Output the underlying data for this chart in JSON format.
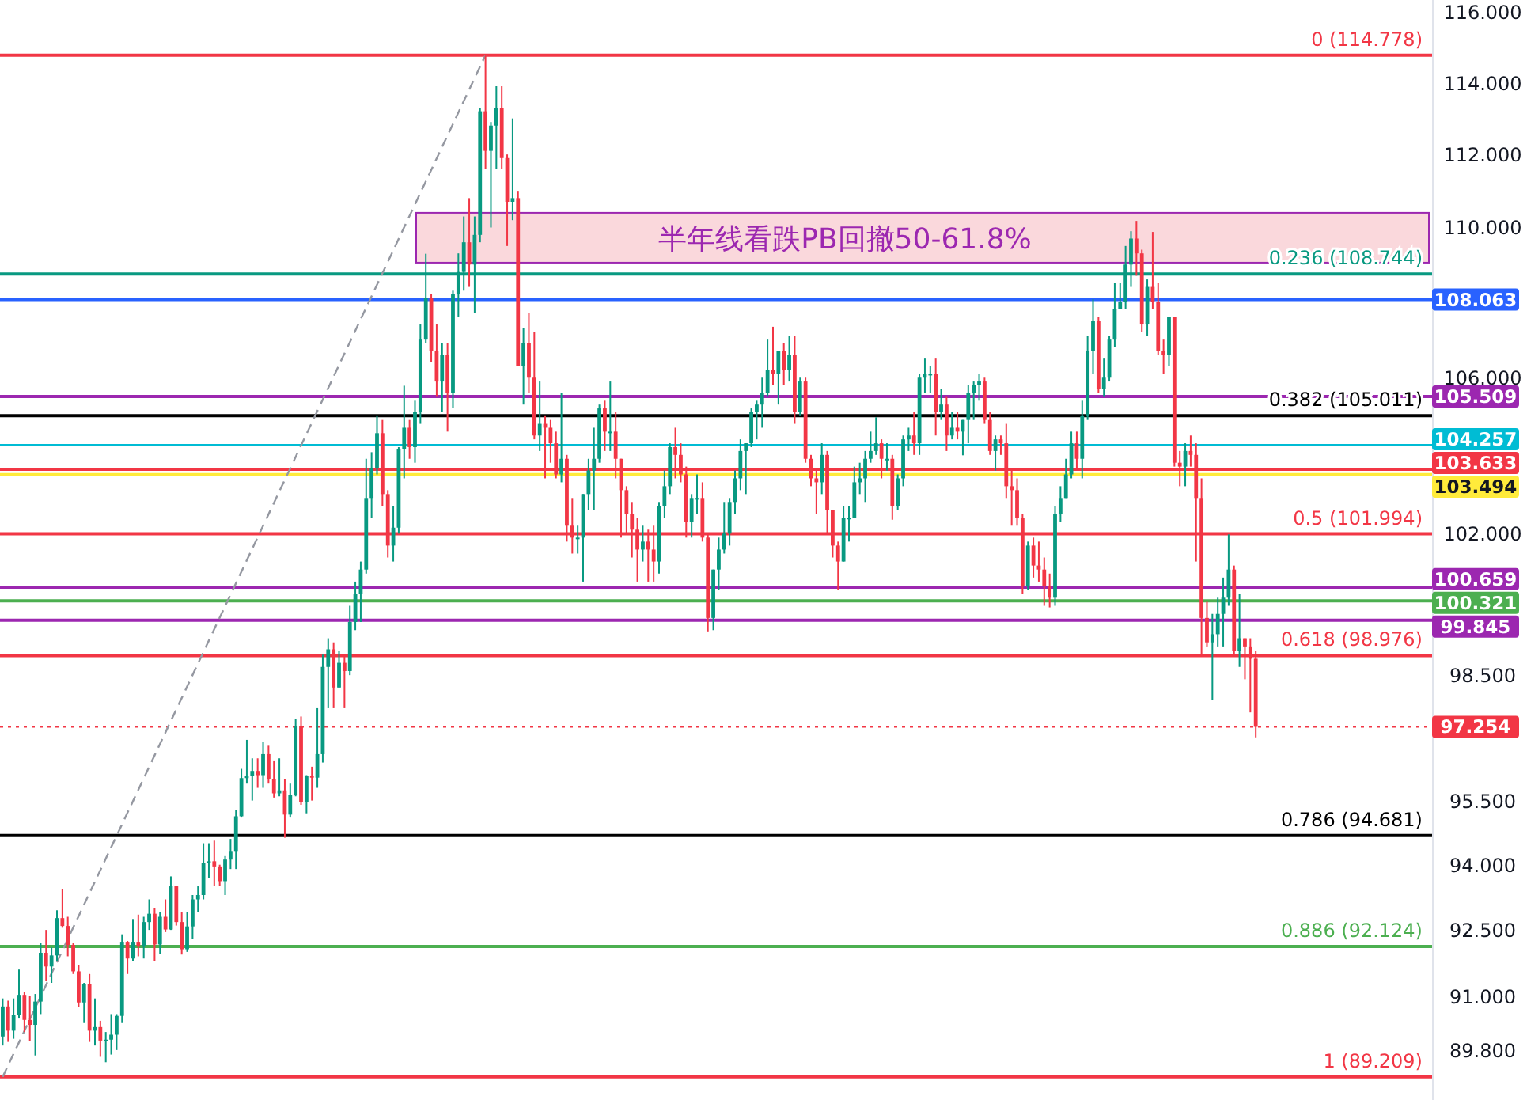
{
  "chart_data": {
    "type": "candlestick",
    "log": true,
    "tick_labels": "y",
    "categories": [
      null,
      null,
      null,
      null,
      null,
      null,
      null,
      null,
      null,
      null,
      null,
      null,
      null,
      null,
      null,
      null,
      null,
      null,
      null,
      null,
      null,
      null,
      null,
      null,
      null,
      null,
      null,
      null,
      null,
      null,
      null,
      null,
      null,
      null,
      null,
      null,
      null,
      null,
      null,
      null,
      null,
      null,
      null,
      null,
      null,
      null,
      null,
      null,
      null,
      null,
      null,
      null,
      null,
      null,
      null,
      null,
      null,
      null,
      null,
      null,
      null,
      null,
      null,
      null,
      null,
      null,
      null,
      null,
      null,
      null,
      null,
      null,
      null,
      null,
      null,
      null,
      null,
      null,
      null,
      null,
      null,
      null,
      null,
      null,
      null,
      null,
      null,
      null,
      null,
      null,
      null,
      null,
      null,
      null,
      null,
      null,
      null,
      null,
      null,
      null,
      null,
      null,
      null,
      null,
      null,
      null,
      null,
      null,
      null,
      null,
      null,
      null,
      null,
      null,
      null,
      null,
      null,
      null,
      null,
      null,
      null,
      null,
      null,
      null,
      null,
      null,
      null,
      null,
      null,
      null,
      null,
      null,
      null,
      null,
      null,
      null,
      null,
      null,
      null,
      null,
      null,
      null,
      null,
      null,
      null,
      null,
      null,
      null,
      null,
      null,
      null,
      null,
      null,
      null,
      null,
      null,
      null,
      null,
      null,
      null,
      null,
      null,
      null,
      null,
      null,
      null,
      null,
      null,
      null,
      null,
      null,
      null,
      null,
      null,
      null,
      null,
      null,
      null,
      null,
      null,
      null,
      null,
      null,
      null,
      null,
      null,
      null,
      null,
      null,
      null,
      null,
      null,
      null,
      null,
      null,
      null,
      null,
      null,
      null,
      null,
      null,
      null,
      null,
      null,
      null,
      null,
      null,
      null,
      null,
      null,
      null,
      null,
      null,
      null,
      null,
      null,
      null,
      null,
      null,
      null,
      null,
      null,
      null,
      null,
      null,
      null,
      null,
      null,
      null,
      null,
      null,
      null,
      null,
      null,
      null,
      null,
      null,
      null,
      null,
      null,
      null,
      null,
      null,
      null,
      null,
      null,
      null,
      null,
      null,
      null,
      null,
      null,
      null,
      null,
      null,
      null,
      null,
      null,
      null,
      null,
      null,
      null,
      null,
      null
    ],
    "ohlc": [
      [
        90.1,
        90.95,
        89.9,
        90.77
      ],
      [
        90.77,
        90.9,
        89.98,
        90.23
      ],
      [
        90.23,
        90.95,
        90.05,
        90.58
      ],
      [
        90.58,
        91.6,
        90.5,
        91.03
      ],
      [
        91.03,
        91.1,
        90.2,
        90.47
      ],
      [
        90.47,
        91.0,
        90.0,
        90.36
      ],
      [
        90.36,
        91.05,
        89.68,
        90.88
      ],
      [
        90.88,
        92.2,
        90.6,
        91.98
      ],
      [
        91.98,
        92.5,
        91.35,
        91.67
      ],
      [
        91.67,
        92.1,
        91.3,
        91.92
      ],
      [
        91.92,
        92.95,
        91.8,
        92.77
      ],
      [
        92.77,
        93.44,
        92.55,
        92.59
      ],
      [
        92.59,
        92.8,
        91.9,
        92.16
      ],
      [
        92.16,
        92.2,
        91.5,
        91.56
      ],
      [
        91.56,
        91.7,
        90.75,
        90.86
      ],
      [
        90.86,
        91.3,
        90.4,
        91.28
      ],
      [
        91.28,
        91.5,
        89.98,
        90.23
      ],
      [
        90.23,
        90.95,
        89.9,
        90.31
      ],
      [
        90.31,
        90.45,
        89.65,
        90.01
      ],
      [
        90.01,
        90.2,
        89.53,
        90.03
      ],
      [
        90.03,
        90.6,
        89.7,
        90.14
      ],
      [
        90.14,
        90.6,
        89.8,
        90.56
      ],
      [
        90.56,
        92.4,
        90.4,
        92.23
      ],
      [
        92.23,
        92.25,
        91.5,
        91.85
      ],
      [
        91.85,
        92.75,
        91.8,
        92.23
      ],
      [
        92.23,
        92.85,
        91.9,
        92.12
      ],
      [
        92.12,
        92.8,
        91.85,
        92.68
      ],
      [
        92.68,
        93.2,
        92.5,
        92.87
      ],
      [
        92.87,
        93.0,
        91.8,
        92.17
      ],
      [
        92.17,
        92.9,
        91.95,
        92.8
      ],
      [
        92.8,
        93.2,
        92.45,
        92.51
      ],
      [
        92.51,
        93.73,
        92.5,
        93.5
      ],
      [
        93.5,
        93.5,
        92.6,
        92.68
      ],
      [
        92.68,
        92.9,
        91.94,
        92.06
      ],
      [
        92.06,
        92.9,
        92.0,
        92.58
      ],
      [
        92.58,
        93.3,
        92.3,
        93.2
      ],
      [
        93.2,
        93.5,
        92.9,
        93.3
      ],
      [
        93.3,
        94.5,
        93.2,
        94.04
      ],
      [
        94.04,
        94.5,
        93.7,
        94.08
      ],
      [
        94.08,
        94.56,
        93.5,
        93.96
      ],
      [
        93.96,
        94.0,
        93.5,
        93.62
      ],
      [
        93.62,
        94.2,
        93.3,
        94.12
      ],
      [
        94.12,
        94.6,
        93.9,
        94.32
      ],
      [
        94.32,
        95.27,
        93.9,
        95.13
      ],
      [
        95.13,
        96.25,
        95.1,
        96.03
      ],
      [
        96.03,
        96.94,
        95.9,
        96.09
      ],
      [
        96.09,
        96.5,
        95.5,
        96.2
      ],
      [
        96.2,
        96.5,
        95.8,
        96.1
      ],
      [
        96.1,
        96.9,
        95.8,
        96.6
      ],
      [
        96.6,
        96.8,
        95.9,
        96.0
      ],
      [
        96.0,
        96.45,
        95.57,
        95.67
      ],
      [
        95.67,
        96.5,
        95.6,
        95.74
      ],
      [
        95.74,
        96.0,
        94.63,
        95.17
      ],
      [
        95.17,
        95.9,
        95.1,
        95.64
      ],
      [
        95.64,
        97.44,
        95.6,
        97.27
      ],
      [
        97.27,
        97.5,
        95.4,
        95.47
      ],
      [
        95.47,
        96.1,
        95.2,
        96.08
      ],
      [
        96.08,
        96.3,
        95.5,
        96.04
      ],
      [
        96.04,
        97.7,
        95.8,
        96.6
      ],
      [
        96.6,
        99.0,
        96.4,
        98.7
      ],
      [
        98.7,
        99.4,
        97.7,
        99.13
      ],
      [
        99.13,
        99.3,
        97.7,
        98.2
      ],
      [
        98.2,
        99.1,
        98.2,
        98.8
      ],
      [
        98.8,
        99.0,
        97.7,
        98.6
      ],
      [
        98.6,
        100.2,
        98.5,
        99.8
      ],
      [
        99.8,
        100.8,
        99.6,
        100.5
      ],
      [
        100.5,
        101.3,
        99.8,
        101.1
      ],
      [
        101.1,
        103.9,
        101.0,
        102.9
      ],
      [
        102.9,
        104.07,
        102.4,
        103.67
      ],
      [
        103.67,
        105.0,
        103.5,
        104.56
      ],
      [
        104.56,
        104.9,
        102.7,
        103.0
      ],
      [
        103.0,
        103.1,
        101.4,
        101.7
      ],
      [
        101.7,
        102.7,
        101.3,
        102.15
      ],
      [
        102.15,
        104.2,
        102.0,
        104.15
      ],
      [
        104.15,
        105.79,
        103.4,
        104.7
      ],
      [
        104.7,
        104.9,
        103.9,
        104.2
      ],
      [
        104.2,
        105.4,
        103.8,
        105.1
      ],
      [
        105.1,
        107.4,
        104.8,
        107.0
      ],
      [
        107.0,
        109.29,
        106.9,
        108.1
      ],
      [
        108.1,
        108.2,
        106.4,
        106.7
      ],
      [
        106.7,
        107.4,
        105.5,
        105.9
      ],
      [
        105.9,
        106.9,
        105.1,
        106.6
      ],
      [
        106.6,
        106.9,
        104.6,
        105.6
      ],
      [
        105.6,
        108.3,
        105.2,
        108.2
      ],
      [
        108.2,
        109.3,
        107.6,
        108.8
      ],
      [
        108.8,
        110.3,
        108.3,
        109.6
      ],
      [
        109.6,
        110.8,
        108.4,
        109.0
      ],
      [
        109.0,
        110.3,
        107.7,
        109.8
      ],
      [
        109.8,
        113.3,
        109.6,
        113.2
      ],
      [
        113.2,
        114.778,
        111.6,
        112.1
      ],
      [
        112.1,
        112.9,
        110.0,
        112.8
      ],
      [
        112.8,
        113.9,
        111.6,
        113.3
      ],
      [
        113.3,
        113.9,
        111.6,
        111.9
      ],
      [
        111.9,
        112.0,
        109.5,
        110.7
      ],
      [
        110.7,
        113.0,
        110.2,
        110.8
      ],
      [
        110.8,
        111.0,
        106.3,
        106.3
      ],
      [
        106.3,
        107.3,
        105.3,
        106.9
      ],
      [
        106.9,
        107.7,
        105.6,
        106.0
      ],
      [
        106.0,
        107.2,
        104.4,
        104.5
      ],
      [
        104.5,
        105.9,
        104.1,
        104.8
      ],
      [
        104.8,
        105.0,
        103.4,
        104.7
      ],
      [
        104.7,
        104.9,
        103.8,
        104.3
      ],
      [
        104.3,
        104.6,
        103.4,
        103.5
      ],
      [
        103.5,
        105.6,
        103.3,
        103.9
      ],
      [
        103.9,
        104.0,
        101.8,
        102.2
      ],
      [
        102.2,
        102.9,
        101.5,
        101.9
      ],
      [
        101.9,
        102.2,
        101.5,
        101.9
      ],
      [
        101.9,
        103.0,
        100.8,
        103.0
      ],
      [
        103.0,
        103.9,
        102.6,
        103.6
      ],
      [
        103.6,
        104.7,
        102.6,
        103.9
      ],
      [
        103.9,
        105.3,
        103.8,
        105.2
      ],
      [
        105.2,
        105.4,
        104.1,
        104.6
      ],
      [
        104.6,
        105.9,
        104.1,
        104.6
      ],
      [
        104.6,
        105.1,
        103.4,
        103.9
      ],
      [
        103.9,
        103.9,
        101.9,
        103.1
      ],
      [
        103.1,
        103.2,
        102.0,
        102.5
      ],
      [
        102.5,
        102.8,
        101.4,
        102.1
      ],
      [
        102.1,
        102.4,
        100.8,
        101.6
      ],
      [
        101.6,
        102.2,
        101.3,
        101.8
      ],
      [
        101.8,
        102.1,
        100.8,
        101.6
      ],
      [
        101.6,
        102.2,
        100.8,
        101.3
      ],
      [
        101.3,
        102.8,
        101.0,
        102.7
      ],
      [
        102.7,
        103.6,
        102.4,
        103.2
      ],
      [
        103.2,
        104.3,
        103.0,
        104.2
      ],
      [
        104.2,
        104.7,
        103.4,
        104.0
      ],
      [
        104.0,
        104.3,
        103.3,
        103.5
      ],
      [
        103.5,
        103.7,
        101.9,
        102.3
      ],
      [
        102.3,
        103.0,
        101.9,
        102.9
      ],
      [
        102.9,
        103.5,
        102.5,
        102.9
      ],
      [
        102.9,
        103.3,
        101.8,
        101.9
      ],
      [
        101.9,
        102.0,
        99.57,
        99.9
      ],
      [
        99.9,
        101.1,
        99.6,
        101.1
      ],
      [
        101.1,
        101.9,
        100.6,
        101.6
      ],
      [
        101.6,
        102.8,
        101.5,
        102.0
      ],
      [
        102.0,
        102.9,
        101.7,
        102.8
      ],
      [
        102.8,
        103.6,
        102.5,
        103.4
      ],
      [
        103.4,
        104.4,
        103.1,
        104.1
      ],
      [
        104.1,
        104.3,
        103.0,
        104.3
      ],
      [
        104.3,
        105.2,
        104.2,
        105.1
      ],
      [
        105.1,
        105.4,
        104.4,
        105.3
      ],
      [
        105.3,
        106.0,
        104.7,
        105.6
      ],
      [
        105.6,
        107.0,
        105.5,
        106.2
      ],
      [
        106.2,
        107.34,
        105.8,
        106.1
      ],
      [
        106.1,
        106.7,
        105.3,
        106.7
      ],
      [
        106.7,
        106.9,
        105.8,
        106.2
      ],
      [
        106.2,
        107.1,
        105.9,
        106.6
      ],
      [
        106.6,
        107.1,
        104.8,
        105.1
      ],
      [
        105.1,
        106.0,
        105.0,
        105.9
      ],
      [
        105.9,
        106.0,
        103.8,
        103.9
      ],
      [
        103.9,
        104.0,
        103.2,
        103.4
      ],
      [
        103.4,
        103.6,
        102.5,
        103.3
      ],
      [
        103.3,
        104.3,
        103.0,
        104.0
      ],
      [
        104.0,
        104.1,
        102.0,
        102.6
      ],
      [
        102.6,
        102.6,
        101.4,
        101.7
      ],
      [
        101.7,
        101.8,
        100.6,
        101.3
      ],
      [
        101.3,
        102.7,
        101.3,
        102.4
      ],
      [
        102.4,
        102.7,
        101.8,
        102.4
      ],
      [
        102.4,
        103.7,
        102.4,
        103.3
      ],
      [
        103.3,
        103.8,
        103.0,
        103.4
      ],
      [
        103.4,
        104.1,
        102.8,
        103.9
      ],
      [
        103.9,
        104.6,
        103.8,
        104.1
      ],
      [
        104.1,
        104.97,
        104.0,
        104.3
      ],
      [
        104.3,
        104.4,
        103.4,
        103.9
      ],
      [
        103.9,
        104.3,
        103.6,
        103.9
      ],
      [
        103.9,
        104.0,
        102.35,
        102.7
      ],
      [
        102.7,
        103.5,
        102.6,
        103.4
      ],
      [
        103.4,
        104.5,
        103.2,
        104.4
      ],
      [
        104.4,
        104.7,
        104.1,
        104.5
      ],
      [
        104.5,
        105.1,
        104.0,
        104.3
      ],
      [
        104.3,
        106.1,
        104.0,
        106.0
      ],
      [
        106.0,
        106.5,
        105.6,
        106.1
      ],
      [
        106.1,
        106.3,
        105.6,
        106.1
      ],
      [
        106.1,
        106.5,
        104.5,
        105.1
      ],
      [
        105.1,
        105.7,
        104.9,
        105.3
      ],
      [
        105.3,
        105.5,
        104.1,
        104.5
      ],
      [
        104.5,
        105.1,
        104.4,
        104.7
      ],
      [
        104.7,
        105.1,
        104.4,
        104.6
      ],
      [
        104.6,
        104.9,
        103.99,
        104.9
      ],
      [
        104.9,
        105.8,
        104.3,
        105.6
      ],
      [
        105.6,
        105.9,
        104.9,
        105.8
      ],
      [
        105.8,
        106.1,
        105.4,
        105.9
      ],
      [
        105.9,
        106.0,
        104.8,
        104.9
      ],
      [
        104.9,
        105.1,
        104.0,
        104.1
      ],
      [
        104.1,
        104.5,
        103.6,
        104.4
      ],
      [
        104.4,
        104.5,
        104.0,
        104.3
      ],
      [
        104.3,
        104.8,
        102.9,
        103.2
      ],
      [
        103.2,
        103.6,
        102.2,
        103.1
      ],
      [
        103.1,
        103.4,
        102.2,
        102.4
      ],
      [
        102.4,
        102.5,
        100.5,
        100.7
      ],
      [
        100.7,
        101.8,
        100.6,
        101.7
      ],
      [
        101.7,
        101.9,
        100.9,
        101.2
      ],
      [
        101.2,
        101.8,
        100.8,
        101.1
      ],
      [
        101.1,
        101.4,
        100.2,
        100.7
      ],
      [
        100.7,
        101.0,
        100.16,
        100.4
      ],
      [
        100.4,
        102.7,
        100.2,
        102.5
      ],
      [
        102.5,
        103.2,
        102.3,
        102.9
      ],
      [
        102.9,
        103.9,
        102.9,
        103.5
      ],
      [
        103.5,
        104.6,
        103.4,
        104.3
      ],
      [
        104.3,
        104.6,
        103.6,
        103.9
      ],
      [
        103.9,
        105.4,
        103.4,
        105.0
      ],
      [
        105.0,
        107.1,
        104.9,
        106.7
      ],
      [
        106.7,
        108.07,
        106.1,
        107.5
      ],
      [
        107.5,
        107.6,
        105.6,
        105.7
      ],
      [
        105.7,
        106.5,
        105.5,
        106.0
      ],
      [
        106.0,
        107.1,
        105.9,
        107.0
      ],
      [
        107.0,
        108.5,
        106.8,
        107.8
      ],
      [
        107.8,
        108.5,
        107.8,
        108.0
      ],
      [
        108.0,
        109.5,
        107.8,
        109.0
      ],
      [
        109.0,
        109.9,
        108.4,
        109.7
      ],
      [
        109.7,
        110.18,
        108.7,
        109.3
      ],
      [
        109.3,
        109.4,
        107.2,
        107.4
      ],
      [
        107.4,
        108.6,
        107.1,
        108.4
      ],
      [
        108.4,
        109.88,
        107.8,
        108.0
      ],
      [
        108.0,
        108.5,
        106.6,
        106.7
      ],
      [
        106.7,
        107.0,
        106.1,
        106.6
      ],
      [
        106.6,
        107.6,
        106.3,
        107.6
      ],
      [
        107.6,
        107.6,
        103.7,
        103.8
      ],
      [
        103.8,
        104.1,
        103.2,
        103.7
      ],
      [
        103.7,
        104.3,
        103.2,
        104.1
      ],
      [
        104.1,
        104.5,
        103.7,
        104.0
      ],
      [
        104.0,
        104.3,
        101.3,
        102.9
      ],
      [
        102.9,
        103.4,
        99.0,
        99.9
      ],
      [
        99.9,
        100.3,
        99.2,
        99.3
      ],
      [
        99.3,
        100.0,
        97.9,
        99.5
      ],
      [
        99.5,
        100.4,
        99.2,
        100.0
      ],
      [
        100.0,
        100.9,
        99.2,
        100.4
      ],
      [
        100.4,
        101.98,
        100.2,
        101.1
      ],
      [
        101.1,
        101.2,
        99.0,
        99.1
      ],
      [
        99.1,
        100.5,
        98.7,
        99.4
      ],
      [
        99.4,
        99.4,
        98.4,
        99.2
      ],
      [
        99.2,
        99.4,
        97.6,
        98.9
      ],
      [
        98.9,
        99.1,
        97.0,
        97.254
      ],
      null,
      null,
      null,
      null,
      null,
      null,
      null,
      null,
      null,
      null,
      null,
      null,
      null,
      null,
      null,
      null,
      null,
      null,
      null,
      null,
      null,
      null,
      null,
      null,
      null,
      null,
      null,
      null,
      null,
      null,
      null,
      null
    ],
    "series": [
      {
        "type": "line",
        "color": "#9598a1",
        "line_style": "dashed",
        "values": [
          89.209,
          null,
          null,
          null,
          null,
          null,
          null,
          null,
          null,
          null,
          null,
          null,
          null,
          null,
          null,
          null,
          null,
          null,
          null,
          null,
          null,
          null,
          null,
          null,
          null,
          null,
          null,
          null,
          null,
          null,
          null,
          null,
          null,
          null,
          null,
          null,
          null,
          null,
          null,
          null,
          null,
          null,
          null,
          null,
          null,
          null,
          null,
          null,
          null,
          null,
          null,
          null,
          null,
          null,
          null,
          null,
          null,
          null,
          null,
          null,
          null,
          null,
          null,
          null,
          null,
          null,
          null,
          null,
          null,
          null,
          null,
          null,
          null,
          null,
          null,
          null,
          null,
          null,
          null,
          null,
          null,
          null,
          null,
          null,
          null,
          null,
          null,
          null,
          null,
          114.778,
          null,
          null,
          null,
          null,
          null,
          null,
          null,
          null,
          null,
          null,
          null,
          null,
          null,
          null,
          null,
          null,
          null,
          null,
          null,
          null,
          null,
          null,
          null,
          null,
          null,
          null,
          null,
          null,
          null,
          null,
          null,
          null,
          null,
          null,
          null,
          null,
          null,
          null,
          null,
          null,
          null,
          null,
          null,
          null,
          null,
          null,
          null,
          null,
          null,
          null,
          null,
          null,
          null,
          null,
          null,
          null,
          null,
          null,
          null,
          null,
          null,
          null,
          null,
          null,
          null,
          null,
          null,
          null,
          null,
          null,
          null,
          null,
          null,
          null,
          null,
          null,
          null,
          null,
          null,
          null,
          null,
          null,
          null,
          null,
          null,
          null,
          null,
          null,
          null,
          null,
          null,
          null,
          null,
          null,
          null,
          null,
          null,
          null,
          null,
          null,
          null,
          null,
          null,
          null,
          null,
          null,
          null,
          null,
          null,
          null,
          null,
          null,
          null,
          null,
          null,
          null,
          null,
          null,
          null,
          null,
          null,
          null,
          null,
          null,
          null,
          null,
          null,
          null,
          null,
          null,
          null,
          null,
          null,
          null,
          null,
          null,
          null,
          null,
          null,
          null,
          null,
          null,
          null,
          null,
          null,
          null,
          null,
          null,
          null,
          null,
          null,
          null,
          null,
          null,
          null,
          null,
          null,
          null,
          null,
          null,
          null,
          null,
          null,
          null,
          null,
          null,
          null,
          null,
          null,
          null,
          null,
          null,
          null,
          null
        ]
      }
    ],
    "ylim": [
      88.7,
      116.35
    ],
    "annotations": [
      {
        "text": "0 (114.778)",
        "y": 114.778
      },
      {
        "text": "0.236 (108.744)",
        "y": 108.744
      },
      {
        "text": "0.382 (105.011)",
        "y": 105.011
      },
      {
        "text": "0.5 (101.994)",
        "y": 101.994
      },
      {
        "text": "0.618 (98.976)",
        "y": 98.976
      },
      {
        "text": "0.786 (94.681)",
        "y": 94.681
      },
      {
        "text": "0.886 (92.124)",
        "y": 92.124
      },
      {
        "text": "1 (89.209)",
        "y": 89.209
      }
    ],
    "yticks": [
      {
        "value": 116,
        "label": "116.000"
      },
      {
        "value": 114,
        "label": "114.000"
      },
      {
        "value": 112,
        "label": "112.000"
      },
      {
        "value": 110,
        "label": "110.000"
      },
      {
        "value": 106,
        "label": "106.000"
      },
      {
        "value": 102,
        "label": "102.000"
      },
      {
        "value": 98.5,
        "label": "98.500"
      },
      {
        "value": 95.5,
        "label": "95.500"
      },
      {
        "value": 94,
        "label": "94.000"
      },
      {
        "value": 92.5,
        "label": "92.500"
      },
      {
        "value": 91,
        "label": "91.000"
      },
      {
        "value": 89.8,
        "label": "89.800"
      }
    ],
    "bands": [
      {
        "axis": "y",
        "from": 109.05,
        "to": 110.4,
        "label": "半年线看跌PB回撤50-61.8%",
        "color": "#fad8dc"
      }
    ],
    "ref_lines": [
      {
        "axis": "y",
        "value": 114.778,
        "color": "#f23645"
      },
      {
        "axis": "y",
        "value": 108.744,
        "color": "#089981"
      },
      {
        "axis": "y",
        "value": 105.011,
        "color": "#000000"
      },
      {
        "axis": "y",
        "value": 101.994,
        "color": "#f23645"
      },
      {
        "axis": "y",
        "value": 98.976,
        "color": "#f23645"
      },
      {
        "axis": "y",
        "value": 94.681,
        "color": "#000000"
      },
      {
        "axis": "y",
        "value": 92.124,
        "color": "#4caf50"
      },
      {
        "axis": "y",
        "value": 89.209,
        "color": "#f23645"
      },
      {
        "axis": "y",
        "value": 108.063,
        "label": "108.063",
        "color": "#2962ff"
      },
      {
        "axis": "y",
        "value": 105.509,
        "label": "105.509",
        "color": "#9c27b0"
      },
      {
        "axis": "y",
        "value": 104.257,
        "label": "104.257",
        "color": "#00bcd4"
      },
      {
        "axis": "y",
        "value": 103.633,
        "label": "103.633",
        "color": "#f23645"
      },
      {
        "axis": "y",
        "value": 103.494,
        "label": "103.494",
        "color": "#ffeb3b"
      },
      {
        "axis": "y",
        "value": 100.659,
        "label": "100.659",
        "color": "#9c27b0"
      },
      {
        "axis": "y",
        "value": 100.321,
        "label": "100.321",
        "color": "#4caf50"
      },
      {
        "axis": "y",
        "value": 99.845,
        "label": "99.845",
        "color": "#9c27b0"
      },
      {
        "axis": "y",
        "value": 97.254,
        "label": "97.254",
        "color": "#f23645",
        "line_style": "dotted"
      }
    ]
  }
}
